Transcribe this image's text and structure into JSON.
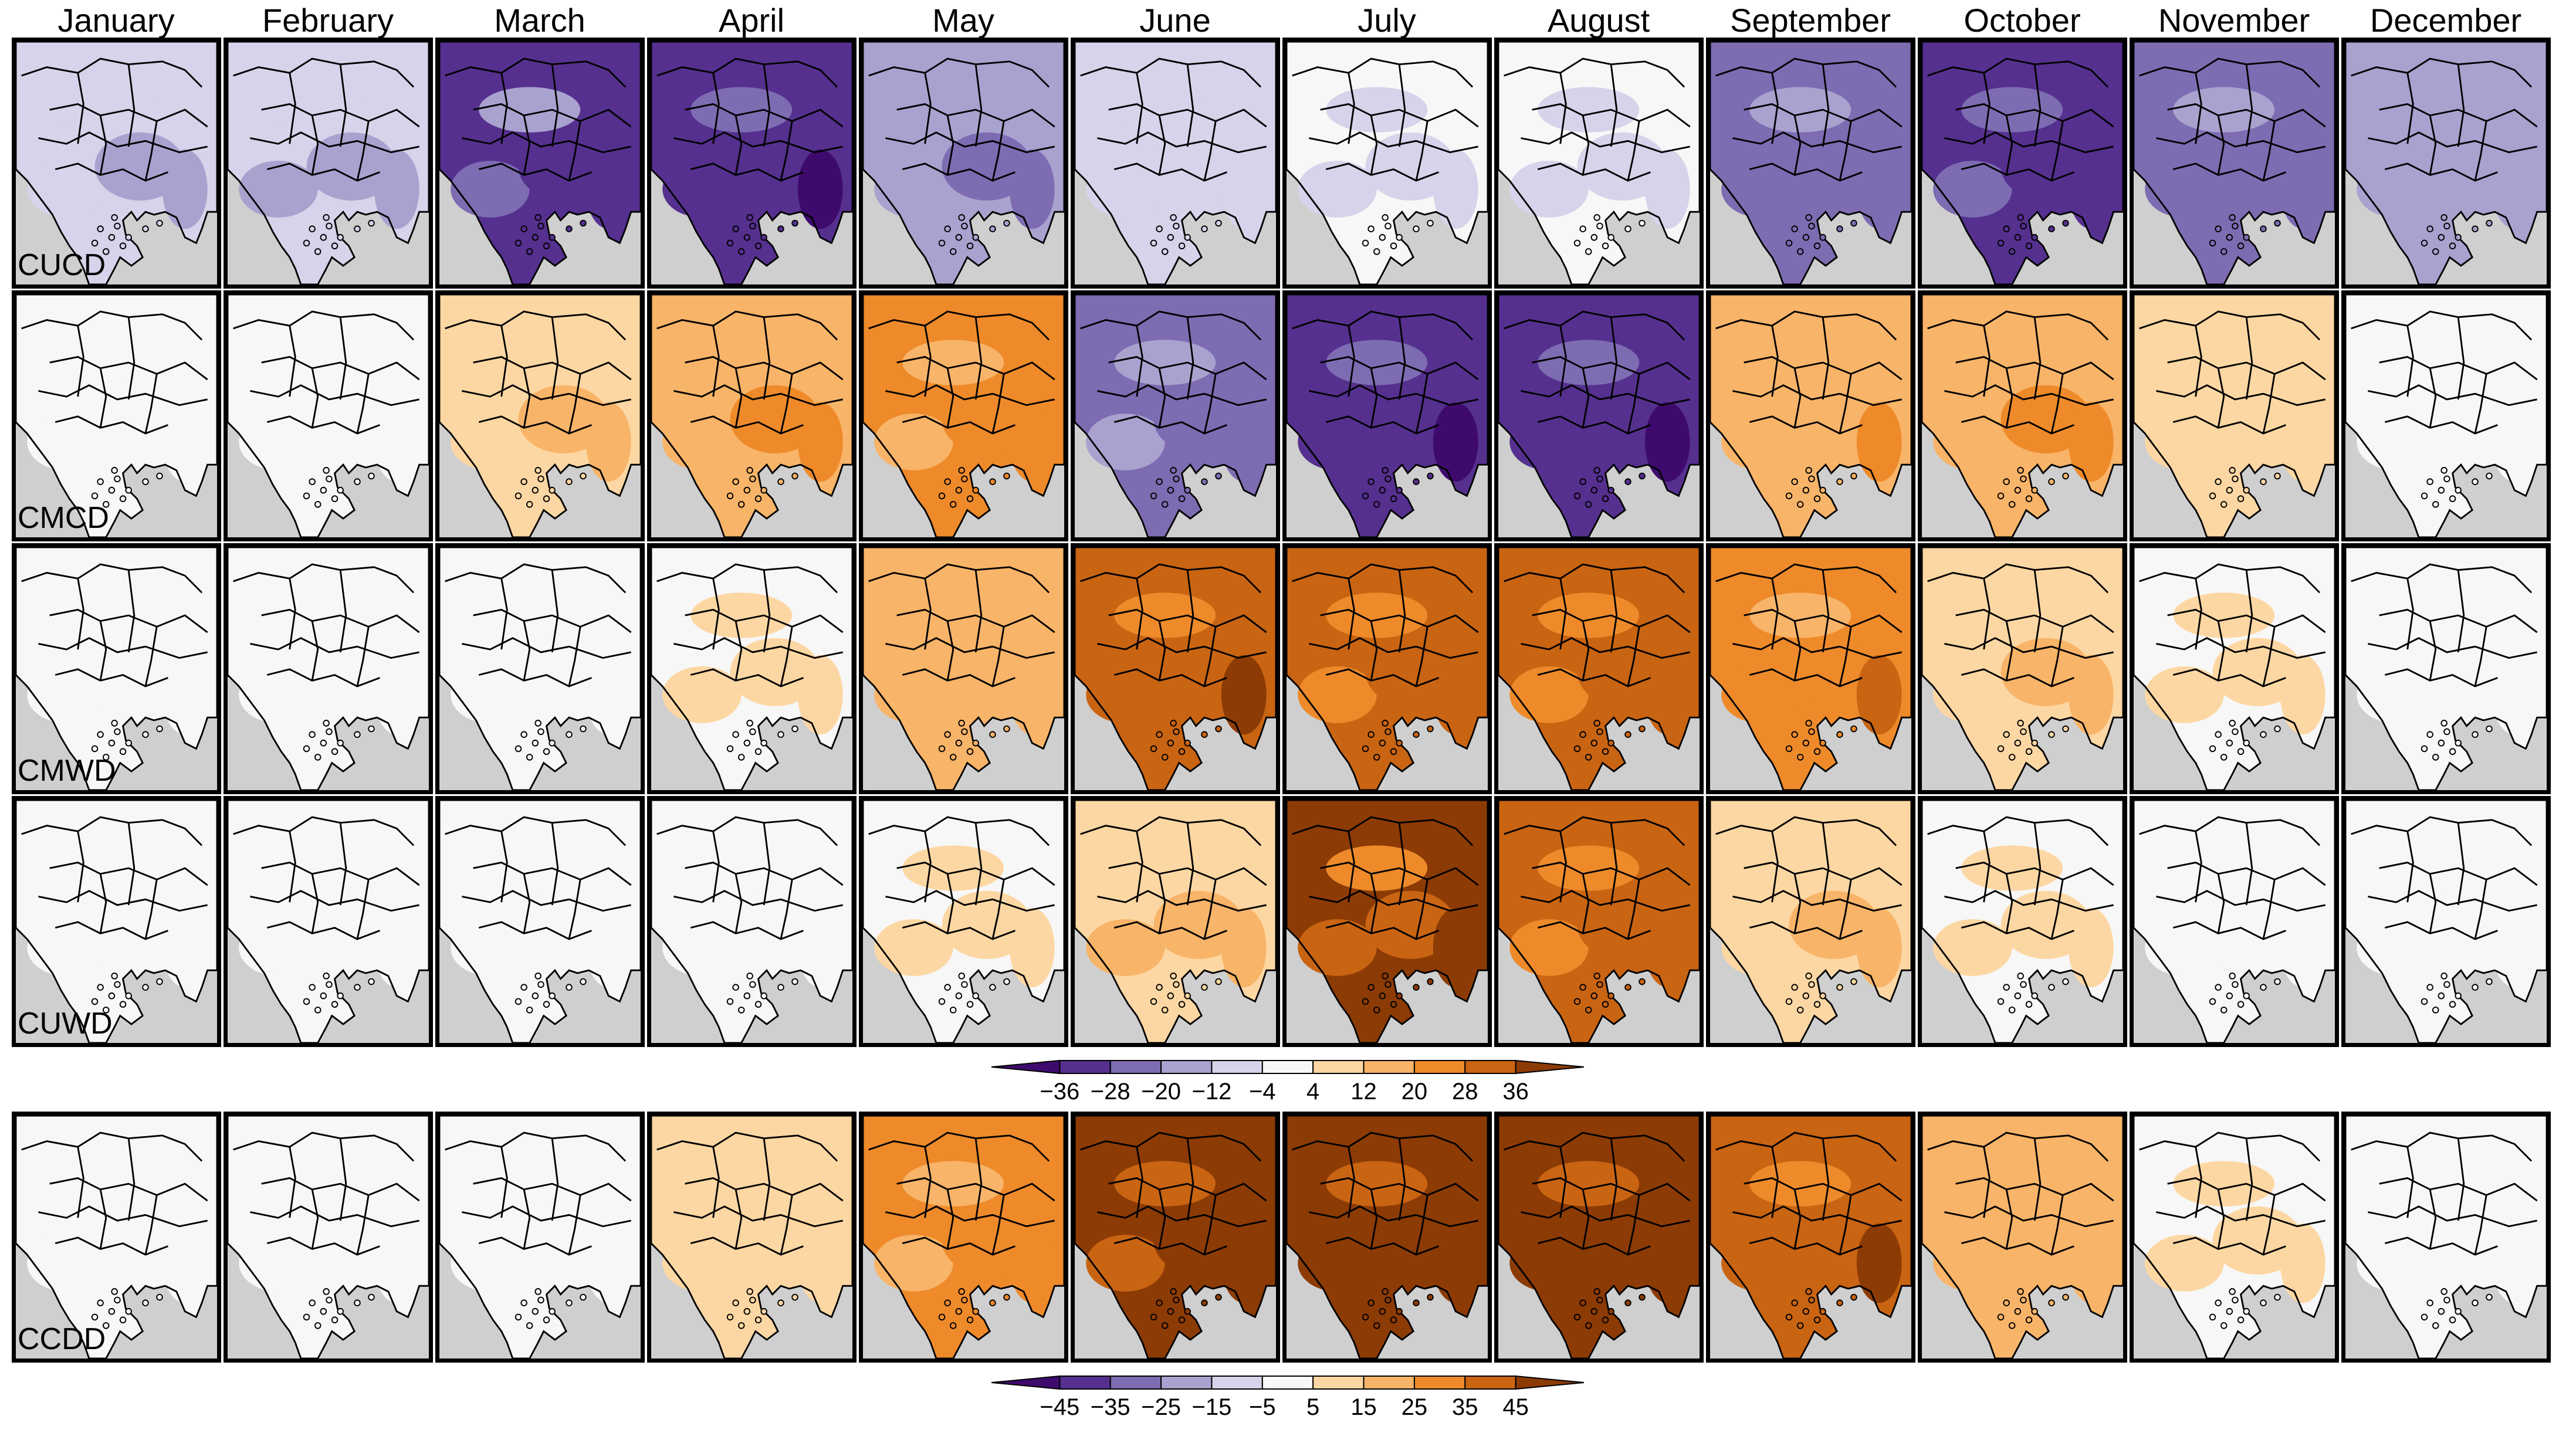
{
  "months": [
    "January",
    "February",
    "March",
    "April",
    "May",
    "June",
    "July",
    "August",
    "September",
    "October",
    "November",
    "December"
  ],
  "rows": [
    {
      "label": "CUCD",
      "intensity": [
        -6,
        -8,
        -24,
        -30,
        -16,
        -4,
        -1,
        -2,
        -20,
        -26,
        -20,
        -10
      ]
    },
    {
      "label": "CMCD",
      "intensity": [
        0,
        0,
        6,
        16,
        18,
        -18,
        -30,
        -30,
        14,
        16,
        4,
        0
      ]
    },
    {
      "label": "CMWD",
      "intensity": [
        0,
        0,
        0,
        1,
        12,
        30,
        26,
        26,
        22,
        6,
        1,
        0
      ]
    },
    {
      "label": "CUWD",
      "intensity": [
        0,
        0,
        0,
        0,
        1,
        8,
        32,
        28,
        6,
        1,
        0,
        0
      ]
    },
    {
      "label": "CCDD",
      "intensity": [
        0,
        0,
        0,
        4,
        18,
        40,
        44,
        44,
        30,
        10,
        1,
        0
      ]
    }
  ],
  "colorbars": [
    {
      "ticks": [
        "−36",
        "−28",
        "−20",
        "−12",
        "−4",
        "4",
        "12",
        "20",
        "28",
        "36"
      ]
    },
    {
      "ticks": [
        "−45",
        "−35",
        "−25",
        "−15",
        "−5",
        "5",
        "15",
        "25",
        "35",
        "45"
      ]
    }
  ],
  "colors": {
    "purple": [
      "#3f0a6e",
      "#55308f",
      "#7d6cb2",
      "#a9a2cf",
      "#d6d3ea"
    ],
    "neutral": "#f7f7f7",
    "orange": [
      "#fdd7a3",
      "#f8b468",
      "#ee8a2a",
      "#c96412",
      "#8c3b05"
    ],
    "sea": "#cfcfcf",
    "border": "#000000"
  }
}
